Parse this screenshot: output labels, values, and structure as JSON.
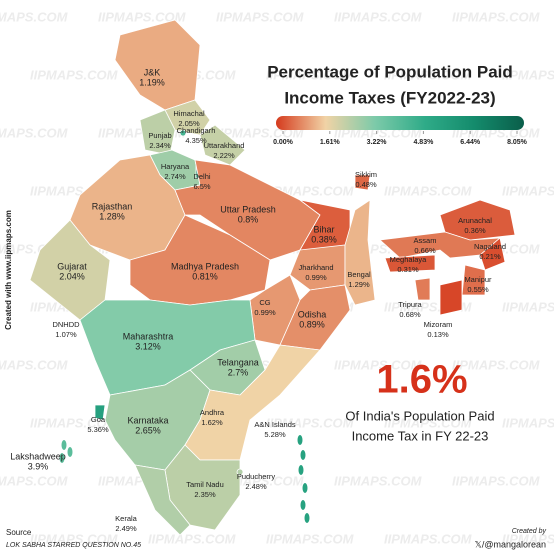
{
  "watermark": "IIPMAPS.COM",
  "title_lines": [
    "Percentage of Population Paid",
    "Income Taxes (FY2022-23)"
  ],
  "legend": {
    "ticks": [
      {
        "value": 0,
        "label": "0.00%"
      },
      {
        "value": 1.61,
        "label": "1.61%"
      },
      {
        "value": 3.22,
        "label": "3.22%"
      },
      {
        "value": 4.83,
        "label": "4.83%"
      },
      {
        "value": 6.44,
        "label": "6.44%"
      },
      {
        "value": 8.05,
        "label": "8.05%"
      }
    ],
    "colors": [
      "#d53a1d",
      "#f1d3a6",
      "#7ccaa9",
      "#2fab88",
      "#148b6c",
      "#0a5e4a"
    ]
  },
  "regions": [
    {
      "name": "J&K",
      "value": 1.19,
      "label": "1.19%"
    },
    {
      "name": "Himachal",
      "value": 2.05,
      "label": "2.05%"
    },
    {
      "name": "Chandigarh",
      "value": 4.35,
      "label": "4.35%"
    },
    {
      "name": "Punjab",
      "value": 2.34,
      "label": "2.34%"
    },
    {
      "name": "Uttarakhand",
      "value": 2.22,
      "label": "2.22%"
    },
    {
      "name": "Haryana",
      "value": 2.74,
      "label": "2.74%"
    },
    {
      "name": "Delhi",
      "value": 6.5,
      "label": "6.5%"
    },
    {
      "name": "Rajasthan",
      "value": 1.28,
      "label": "1.28%"
    },
    {
      "name": "Uttar Pradesh",
      "value": 0.8,
      "label": "0.8%"
    },
    {
      "name": "Sikkim",
      "value": 0.48,
      "label": "0.48%"
    },
    {
      "name": "Bihar",
      "value": 0.38,
      "label": "0.38%"
    },
    {
      "name": "Arunachal",
      "value": 0.36,
      "label": "0.36%"
    },
    {
      "name": "Assam",
      "value": 0.66,
      "label": "0.66%"
    },
    {
      "name": "Nagaland",
      "value": 0.21,
      "label": "0.21%"
    },
    {
      "name": "Meghalaya",
      "value": 0.31,
      "label": "0.31%"
    },
    {
      "name": "Manipur",
      "value": 0.55,
      "label": "0.55%"
    },
    {
      "name": "Tripura",
      "value": 0.68,
      "label": "0.68%"
    },
    {
      "name": "Mizoram",
      "value": 0.13,
      "label": "0.13%"
    },
    {
      "name": "Gujarat",
      "value": 2.04,
      "label": "2.04%"
    },
    {
      "name": "Madhya Pradesh",
      "value": 0.81,
      "label": "0.81%"
    },
    {
      "name": "Jharkhand",
      "value": 0.99,
      "label": "0.99%"
    },
    {
      "name": "Bengal",
      "value": 1.29,
      "label": "1.29%"
    },
    {
      "name": "CG",
      "value": 0.99,
      "label": "0.99%"
    },
    {
      "name": "Odisha",
      "value": 0.89,
      "label": "0.89%"
    },
    {
      "name": "DNHDD",
      "value": 1.07,
      "label": "1.07%"
    },
    {
      "name": "Maharashtra",
      "value": 3.12,
      "label": "3.12%"
    },
    {
      "name": "Telangana",
      "value": 2.7,
      "label": "2.7%"
    },
    {
      "name": "Goa",
      "value": 5.36,
      "label": "5.36%"
    },
    {
      "name": "Karnataka",
      "value": 2.65,
      "label": "2.65%"
    },
    {
      "name": "Andhra",
      "value": 1.62,
      "label": "1.62%"
    },
    {
      "name": "A&N Islands",
      "value": 5.28,
      "label": "5.28%"
    },
    {
      "name": "Lakshadweep",
      "value": 3.9,
      "label": "3.9%"
    },
    {
      "name": "Tamil Nadu",
      "value": 2.35,
      "label": "2.35%"
    },
    {
      "name": "Puducherry",
      "value": 2.48,
      "label": "2.48%"
    },
    {
      "name": "Kerala",
      "value": 2.49,
      "label": "2.49%"
    }
  ],
  "headline": "1.6%",
  "headline_value": 1.6,
  "subheadline_lines": [
    "Of India's Population Paid",
    "Income Tax in FY 22-23"
  ],
  "side_credit": "Created with www.iipmaps.com",
  "source_label": "Source",
  "source_text": "LOK SABHA STARRED QUESTION NO.45",
  "creator_label": "Created by",
  "creator_handle": "𝕏/@mangalorean"
}
